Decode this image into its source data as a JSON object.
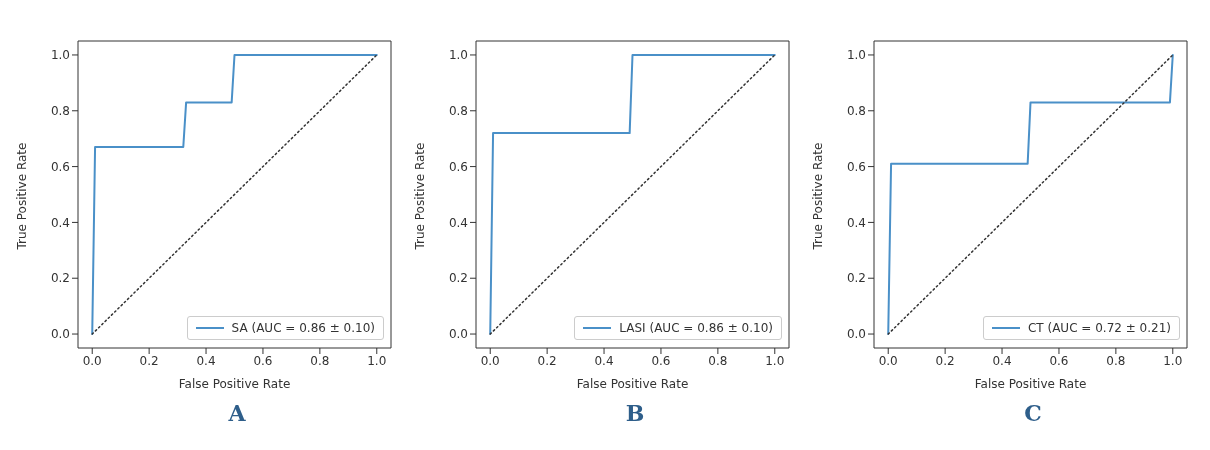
{
  "chart_data": [
    {
      "type": "line",
      "xlabel": "False Positive Rate",
      "ylabel": "True Positive Rate",
      "xlim": [
        -0.05,
        1.05
      ],
      "ylim": [
        -0.05,
        1.05
      ],
      "xticks": [
        {
          "value": 0,
          "label": "0.0"
        },
        {
          "value": 0.2,
          "label": "0.2"
        },
        {
          "value": 0.4,
          "label": "0.4"
        },
        {
          "value": 0.6,
          "label": "0.6"
        },
        {
          "value": 0.8,
          "label": "0.8"
        },
        {
          "value": 1,
          "label": "1.0"
        }
      ],
      "yticks": [
        {
          "value": 0,
          "label": "0.0"
        },
        {
          "value": 0.2,
          "label": "0.2"
        },
        {
          "value": 0.4,
          "label": "0.4"
        },
        {
          "value": 0.6,
          "label": "0.6"
        },
        {
          "value": 0.8,
          "label": "0.8"
        },
        {
          "value": 1,
          "label": "1.0"
        }
      ],
      "grid": false,
      "legend": "bottom right",
      "marker": "none",
      "annotations": [
        "A"
      ],
      "series": [
        {
          "name": "SA (AUC = 0.86 ± 0.10)",
          "color": "#4a90c8",
          "line_style": "solid",
          "x": [
            0,
            0.01,
            0.32,
            0.33,
            0.49,
            0.5,
            1
          ],
          "values": [
            0,
            0.67,
            0.67,
            0.83,
            0.83,
            1,
            1
          ]
        },
        {
          "color": "#333333",
          "line_style": "dotted",
          "x": [
            0,
            1
          ],
          "values": [
            0,
            1
          ]
        }
      ]
    },
    {
      "type": "line",
      "xlabel": "False Positive Rate",
      "ylabel": "True Positive Rate",
      "xlim": [
        -0.05,
        1.05
      ],
      "ylim": [
        -0.05,
        1.05
      ],
      "xticks": [
        {
          "value": 0,
          "label": "0.0"
        },
        {
          "value": 0.2,
          "label": "0.2"
        },
        {
          "value": 0.4,
          "label": "0.4"
        },
        {
          "value": 0.6,
          "label": "0.6"
        },
        {
          "value": 0.8,
          "label": "0.8"
        },
        {
          "value": 1,
          "label": "1.0"
        }
      ],
      "yticks": [
        {
          "value": 0,
          "label": "0.0"
        },
        {
          "value": 0.2,
          "label": "0.2"
        },
        {
          "value": 0.4,
          "label": "0.4"
        },
        {
          "value": 0.6,
          "label": "0.6"
        },
        {
          "value": 0.8,
          "label": "0.8"
        },
        {
          "value": 1,
          "label": "1.0"
        }
      ],
      "grid": false,
      "legend": "bottom right",
      "marker": "none",
      "annotations": [
        "B"
      ],
      "series": [
        {
          "name": "LASI (AUC = 0.86 ± 0.10)",
          "color": "#4a90c8",
          "line_style": "solid",
          "x": [
            0,
            0.01,
            0.49,
            0.5,
            1
          ],
          "values": [
            0,
            0.72,
            0.72,
            1,
            1
          ]
        },
        {
          "color": "#333333",
          "line_style": "dotted",
          "x": [
            0,
            1
          ],
          "values": [
            0,
            1
          ]
        }
      ]
    },
    {
      "type": "line",
      "xlabel": "False Positive Rate",
      "ylabel": "True Positive Rate",
      "xlim": [
        -0.05,
        1.05
      ],
      "ylim": [
        -0.05,
        1.05
      ],
      "xticks": [
        {
          "value": 0,
          "label": "0.0"
        },
        {
          "value": 0.2,
          "label": "0.2"
        },
        {
          "value": 0.4,
          "label": "0.4"
        },
        {
          "value": 0.6,
          "label": "0.6"
        },
        {
          "value": 0.8,
          "label": "0.8"
        },
        {
          "value": 1,
          "label": "1.0"
        }
      ],
      "yticks": [
        {
          "value": 0,
          "label": "0.0"
        },
        {
          "value": 0.2,
          "label": "0.2"
        },
        {
          "value": 0.4,
          "label": "0.4"
        },
        {
          "value": 0.6,
          "label": "0.6"
        },
        {
          "value": 0.8,
          "label": "0.8"
        },
        {
          "value": 1,
          "label": "1.0"
        }
      ],
      "grid": false,
      "legend": "bottom right",
      "marker": "none",
      "annotations": [
        "C"
      ],
      "series": [
        {
          "name": "CT (AUC = 0.72 ± 0.21)",
          "color": "#4a90c8",
          "line_style": "solid",
          "x": [
            0,
            0.01,
            0.49,
            0.5,
            0.99,
            1
          ],
          "values": [
            0,
            0.61,
            0.61,
            0.83,
            0.83,
            1
          ]
        },
        {
          "color": "#333333",
          "line_style": "dotted",
          "x": [
            0,
            1
          ],
          "values": [
            0,
            1
          ]
        }
      ]
    }
  ]
}
